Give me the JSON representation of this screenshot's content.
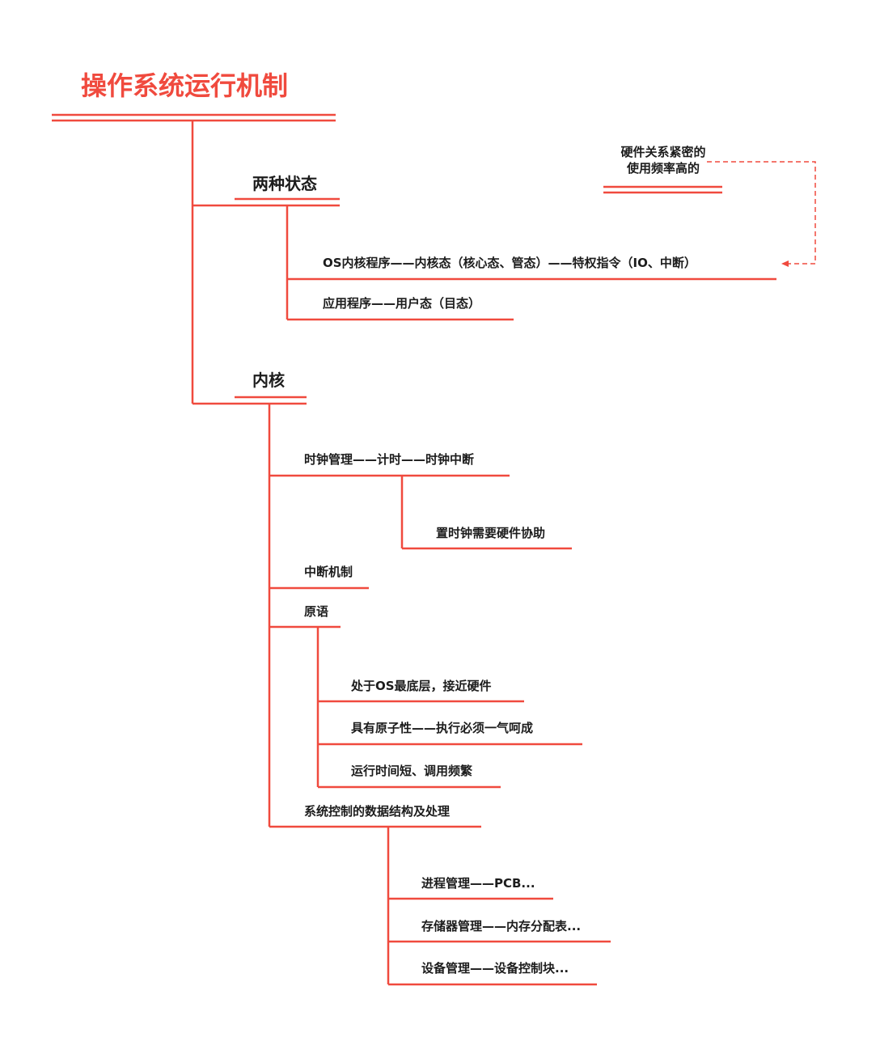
{
  "root": {
    "title": "操作系统运行机制"
  },
  "colors": {
    "branch": "#f04a3e",
    "text": "#1c1c1c"
  },
  "branches": {
    "states": {
      "label": "两种状态",
      "children": [
        "OS内核程序——内核态（核心态、管态）——特权指令（IO、中断）",
        "应用程序——用户态（目态）"
      ]
    },
    "kernel": {
      "label": "内核",
      "children": {
        "clock": {
          "label": "时钟管理——计时——时钟中断",
          "sub": "置时钟需要硬件协助"
        },
        "interrupt": {
          "label": "中断机制"
        },
        "primitive": {
          "label": "原语",
          "sub": [
            "处于OS最底层，接近硬件",
            "具有原子性——执行必须一气呵成",
            "运行时间短、调用频繁"
          ]
        },
        "datastruct": {
          "label": "系统控制的数据结构及处理",
          "sub": [
            "进程管理——PCB...",
            "存储器管理——内存分配表...",
            "设备管理——设备控制块..."
          ]
        }
      }
    }
  },
  "note": {
    "line1": "硬件关系紧密的",
    "line2": "使用频率高的"
  }
}
